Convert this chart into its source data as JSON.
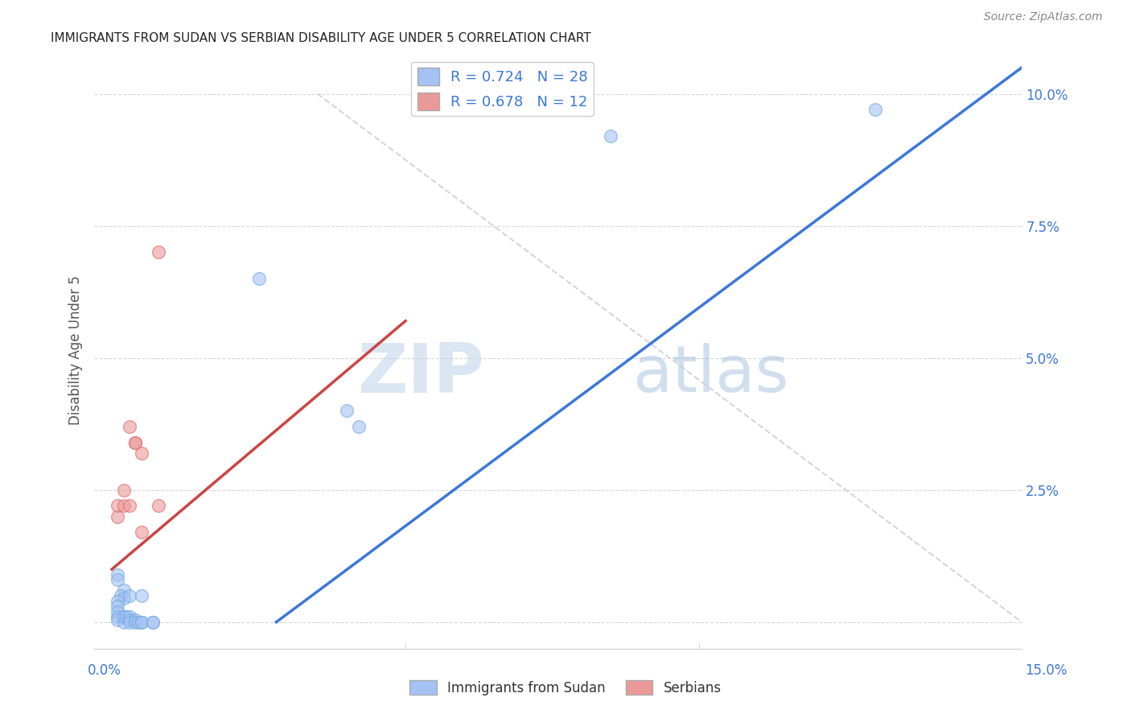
{
  "title": "IMMIGRANTS FROM SUDAN VS SERBIAN DISABILITY AGE UNDER 5 CORRELATION CHART",
  "source": "Source: ZipAtlas.com",
  "ylabel": "Disability Age Under 5",
  "legend_label1": "Immigrants from Sudan",
  "legend_label2": "Serbians",
  "blue_color": "#a4c2f4",
  "pink_color": "#ea9999",
  "blue_scatter_edge": "#6fa8dc",
  "pink_scatter_edge": "#e06666",
  "blue_line_color": "#3c78d8",
  "pink_line_color": "#cc4444",
  "ref_line_color": "#cccccc",
  "r_n_color": "#3c78d8",
  "title_color": "#222222",
  "axis_tick_color": "#3c78d8",
  "ylabel_color": "#555555",
  "blue_scatter": [
    [
      0.001,
      0.009
    ],
    [
      0.002,
      0.006
    ],
    [
      0.001,
      0.008
    ],
    [
      0.0015,
      0.005
    ],
    [
      0.002,
      0.0045
    ],
    [
      0.001,
      0.004
    ],
    [
      0.001,
      0.003
    ],
    [
      0.001,
      0.002
    ],
    [
      0.001,
      0.001
    ],
    [
      0.001,
      0.0005
    ],
    [
      0.002,
      0.0
    ],
    [
      0.002,
      0.001
    ],
    [
      0.0025,
      0.001
    ],
    [
      0.003,
      0.001
    ],
    [
      0.003,
      0.0005
    ],
    [
      0.003,
      0.0
    ],
    [
      0.003,
      0.005
    ],
    [
      0.004,
      0.0005
    ],
    [
      0.004,
      0.0
    ],
    [
      0.0045,
      0.0
    ],
    [
      0.005,
      0.005
    ],
    [
      0.005,
      0.0
    ],
    [
      0.005,
      0.0
    ],
    [
      0.007,
      0.0
    ],
    [
      0.007,
      0.0
    ],
    [
      0.025,
      0.065
    ],
    [
      0.04,
      0.04
    ],
    [
      0.042,
      0.037
    ],
    [
      0.085,
      0.092
    ],
    [
      0.13,
      0.097
    ]
  ],
  "pink_scatter": [
    [
      0.001,
      0.022
    ],
    [
      0.001,
      0.02
    ],
    [
      0.002,
      0.025
    ],
    [
      0.002,
      0.022
    ],
    [
      0.003,
      0.022
    ],
    [
      0.003,
      0.037
    ],
    [
      0.004,
      0.034
    ],
    [
      0.004,
      0.034
    ],
    [
      0.005,
      0.032
    ],
    [
      0.005,
      0.017
    ],
    [
      0.008,
      0.022
    ],
    [
      0.008,
      0.07
    ]
  ],
  "blue_line_x": [
    0.028,
    0.155
  ],
  "blue_line_y": [
    0.0,
    0.105
  ],
  "pink_line_x": [
    0.0,
    0.05
  ],
  "pink_line_y": [
    0.01,
    0.057
  ],
  "ref_line_x": [
    0.035,
    0.155
  ],
  "ref_line_y": [
    0.1,
    0.0
  ],
  "xlim": [
    -0.003,
    0.155
  ],
  "ylim": [
    -0.005,
    0.108
  ],
  "xticks": [
    0.0,
    0.05,
    0.1,
    0.15
  ],
  "yticks": [
    0.0,
    0.025,
    0.05,
    0.075,
    0.1
  ],
  "ytick_labels": [
    "",
    "2.5%",
    "5.0%",
    "7.5%",
    "10.0%"
  ],
  "background_color": "#ffffff",
  "watermark_zip": "ZIP",
  "watermark_atlas": "atlas",
  "title_fontsize": 11,
  "scatter_size": 130
}
